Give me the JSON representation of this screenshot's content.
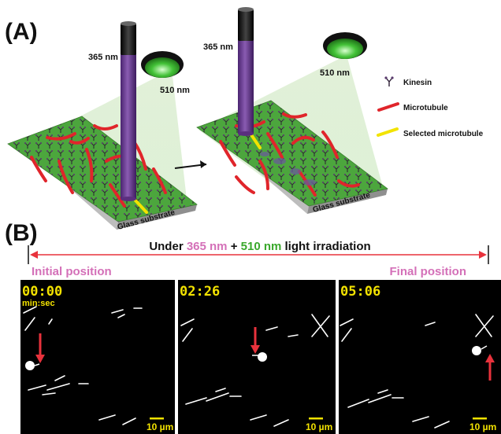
{
  "panel_a": {
    "letter": "(A)",
    "wavelength_uv": "365 nm",
    "wavelength_green": "510 nm",
    "substrate_label": "Glass substrate",
    "legend": {
      "kinesin": "Kinesin",
      "microtubule": "Microtubule",
      "selected_microtubule": "Selected microtubule"
    },
    "colors": {
      "uv": "#6b3a8e",
      "green": "#46c43a",
      "microtubule": "#e0252b",
      "selected": "#f2e300"
    }
  },
  "panel_b": {
    "letter": "(B)",
    "header": {
      "prefix": "Under ",
      "uv": "365 nm",
      "plus": " + ",
      "green": "510 nm",
      "suffix": " light irradiation"
    },
    "initial_position": "Initial position",
    "final_position": "Final position",
    "frames": [
      {
        "time": "00:00",
        "unit": "min:sec",
        "scale": "10 µm"
      },
      {
        "time": "02:26",
        "unit": "",
        "scale": "10 µm"
      },
      {
        "time": "05:06",
        "unit": "",
        "scale": "10 µm"
      }
    ],
    "colors": {
      "arrow": "#e8323c",
      "uv_text": "#d470b8",
      "green_text": "#3aa82c",
      "position_text": "#d470b8"
    }
  }
}
